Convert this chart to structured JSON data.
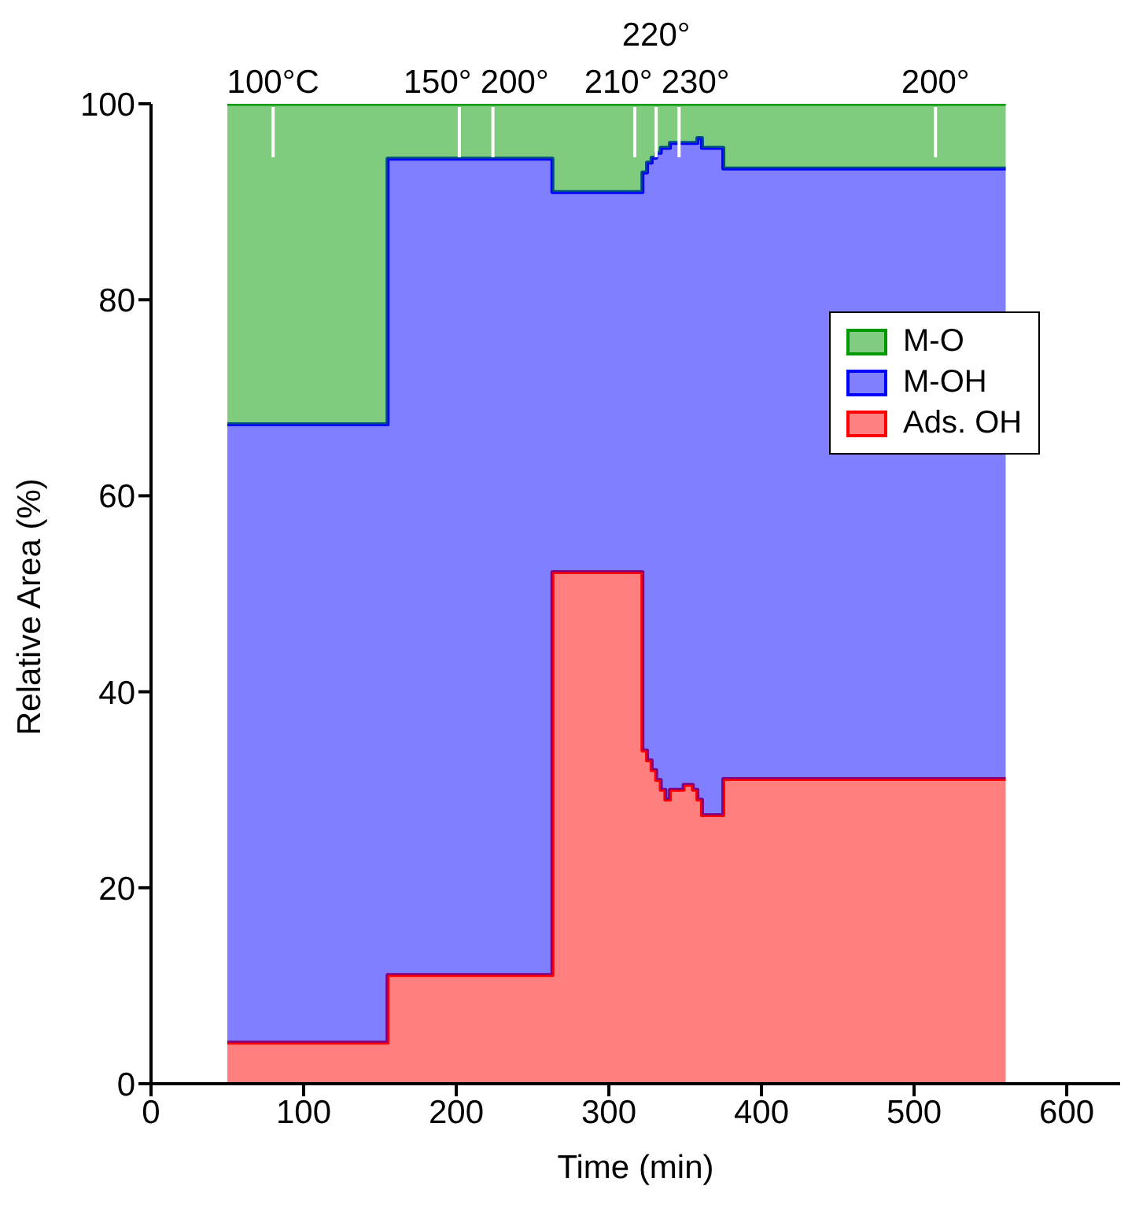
{
  "chart_data": {
    "type": "area",
    "stacked": true,
    "xlabel": "Time (min)",
    "ylabel": "Relative Area (%)",
    "x": [
      50,
      155,
      155,
      263,
      263,
      322,
      322,
      325,
      325,
      328,
      328,
      331,
      331,
      334,
      334,
      337,
      337,
      340,
      340,
      343,
      343,
      346,
      346,
      349,
      349,
      352,
      352,
      355,
      355,
      358,
      358,
      361,
      361,
      375,
      375,
      560
    ],
    "series": [
      {
        "name": "Ads. OH",
        "color": "#ff0000",
        "values": [
          4.2,
          4.2,
          11.1,
          11.1,
          52.2,
          52.2,
          34,
          34,
          33,
          33,
          32,
          32,
          31,
          31,
          30,
          30,
          29,
          29,
          30,
          30,
          30,
          30,
          30,
          30,
          30.5,
          30.5,
          30.5,
          30.5,
          30,
          30,
          29,
          29,
          27.4,
          27.4,
          31.1,
          31.1
        ]
      },
      {
        "name": "M-OH",
        "color": "#0000ff",
        "values": [
          63.1,
          63.1,
          83.3,
          83.3,
          38.8,
          38.8,
          59,
          59,
          61,
          61,
          62.5,
          62.5,
          64,
          64,
          65.5,
          65.5,
          66.5,
          66.5,
          66,
          66,
          66,
          66,
          66,
          66,
          65.5,
          65.5,
          65.5,
          65.5,
          66,
          66,
          67.5,
          67.5,
          68.1,
          68.1,
          62.3,
          62.3
        ]
      },
      {
        "name": "M-O",
        "color": "#009900",
        "values": [
          32.7,
          32.7,
          5.6,
          5.6,
          9,
          9,
          7,
          7,
          6,
          6,
          5.5,
          5.5,
          5,
          5,
          4.5,
          4.5,
          4.5,
          4.5,
          4,
          4,
          4,
          4,
          4,
          4,
          4,
          4,
          4,
          4,
          4,
          4,
          3.5,
          3.5,
          4.5,
          4.5,
          6.6,
          6.6
        ]
      }
    ],
    "xlim": [
      0,
      635
    ],
    "xticks": [
      0,
      100,
      200,
      300,
      400,
      500,
      600
    ],
    "ylim": [
      0,
      100
    ],
    "yticks": [
      0,
      20,
      40,
      60,
      80,
      100
    ],
    "legend": "right",
    "annotations": [
      {
        "text": "100°C",
        "x": 80,
        "y": 100
      },
      {
        "text": "150°",
        "x": 202,
        "y": 100
      },
      {
        "text": "200°",
        "x": 224,
        "y": 100
      },
      {
        "text": "210°",
        "x": 317,
        "y": 100
      },
      {
        "text": "220°",
        "x": 331,
        "y": 100
      },
      {
        "text": "230°",
        "x": 346,
        "y": 100
      },
      {
        "text": "200°",
        "x": 514,
        "y": 100
      }
    ]
  }
}
